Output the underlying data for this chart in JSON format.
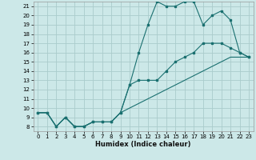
{
  "xlabel": "Humidex (Indice chaleur)",
  "bg_color": "#cce8e8",
  "grid_color": "#aacccc",
  "line_color": "#1a7070",
  "xlim": [
    -0.5,
    23.5
  ],
  "ylim": [
    7.5,
    21.5
  ],
  "xticks": [
    0,
    1,
    2,
    3,
    4,
    5,
    6,
    7,
    8,
    9,
    10,
    11,
    12,
    13,
    14,
    15,
    16,
    17,
    18,
    19,
    20,
    21,
    22,
    23
  ],
  "yticks": [
    8,
    9,
    10,
    11,
    12,
    13,
    14,
    15,
    16,
    17,
    18,
    19,
    20,
    21
  ],
  "line1_x": [
    0,
    1,
    2,
    3,
    4,
    5,
    6,
    7,
    8,
    9,
    10,
    11,
    12,
    13,
    14,
    15,
    16,
    17,
    18,
    19,
    20,
    21,
    22,
    23
  ],
  "line1_y": [
    9.5,
    9.5,
    8.0,
    9.0,
    8.0,
    8.0,
    8.5,
    8.5,
    8.5,
    9.5,
    12.5,
    16.0,
    19.0,
    21.5,
    21.0,
    21.0,
    21.5,
    21.5,
    19.0,
    20.0,
    20.5,
    19.5,
    16.0,
    15.5
  ],
  "line2_x": [
    0,
    1,
    2,
    3,
    4,
    5,
    6,
    7,
    8,
    9,
    10,
    11,
    12,
    13,
    14,
    15,
    16,
    17,
    18,
    19,
    20,
    21,
    22,
    23
  ],
  "line2_y": [
    9.5,
    9.5,
    8.0,
    9.0,
    8.0,
    8.0,
    8.5,
    8.5,
    8.5,
    9.5,
    12.5,
    13.0,
    13.0,
    13.0,
    14.0,
    15.0,
    15.5,
    16.0,
    17.0,
    17.0,
    17.0,
    16.5,
    16.0,
    15.5
  ],
  "line3_x": [
    0,
    1,
    2,
    3,
    4,
    5,
    6,
    7,
    8,
    9,
    10,
    11,
    12,
    13,
    14,
    15,
    16,
    17,
    18,
    19,
    20,
    21,
    22,
    23
  ],
  "line3_y": [
    9.5,
    9.5,
    8.0,
    9.0,
    8.0,
    8.0,
    8.5,
    8.5,
    8.5,
    9.5,
    10.0,
    10.5,
    11.0,
    11.5,
    12.0,
    12.5,
    13.0,
    13.5,
    14.0,
    14.5,
    15.0,
    15.5,
    15.5,
    15.5
  ],
  "tick_fontsize": 5.0,
  "xlabel_fontsize": 6.0,
  "marker_size": 2.0,
  "line_width": 0.8
}
